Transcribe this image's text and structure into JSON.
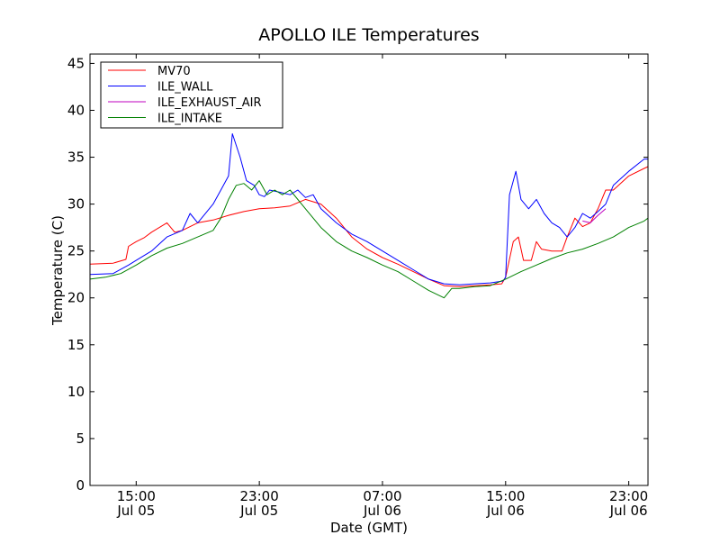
{
  "chart_data": {
    "type": "line",
    "title": "APOLLO ILE Temperatures",
    "xlabel": "Date (GMT)",
    "ylabel": "Temperature (C)",
    "ylim": [
      0,
      46
    ],
    "xlim": [
      "2023-07-05 12:00",
      "2023-07-07 00:15"
    ],
    "grid": false,
    "legend_position": "top-left",
    "yticks": [
      0,
      5,
      10,
      15,
      20,
      25,
      30,
      35,
      40,
      45
    ],
    "xticks": [
      {
        "x": "2023-07-05 15:00",
        "time": "15:00",
        "date": "Jul 05"
      },
      {
        "x": "2023-07-05 23:00",
        "time": "23:00",
        "date": "Jul 05"
      },
      {
        "x": "2023-07-06 07:00",
        "time": "07:00",
        "date": "Jul 06"
      },
      {
        "x": "2023-07-06 15:00",
        "time": "15:00",
        "date": "Jul 06"
      },
      {
        "x": "2023-07-06 23:00",
        "time": "23:00",
        "date": "Jul 06"
      }
    ],
    "series": [
      {
        "name": "MV70",
        "color": "#ff0000",
        "points": [
          [
            "2023-07-05 12:00",
            23.6
          ],
          [
            "2023-07-05 13:30",
            23.7
          ],
          [
            "2023-07-05 14:20",
            24.1
          ],
          [
            "2023-07-05 14:30",
            25.5
          ],
          [
            "2023-07-05 15:00",
            26.0
          ],
          [
            "2023-07-05 15:30",
            26.4
          ],
          [
            "2023-07-05 16:00",
            27.0
          ],
          [
            "2023-07-05 17:00",
            28.0
          ],
          [
            "2023-07-05 17:30",
            27.0
          ],
          [
            "2023-07-05 18:00",
            27.2
          ],
          [
            "2023-07-05 19:00",
            28.0
          ],
          [
            "2023-07-05 20:00",
            28.3
          ],
          [
            "2023-07-05 21:00",
            28.8
          ],
          [
            "2023-07-05 22:00",
            29.2
          ],
          [
            "2023-07-05 23:00",
            29.5
          ],
          [
            "2023-07-06 00:00",
            29.6
          ],
          [
            "2023-07-06 01:00",
            29.8
          ],
          [
            "2023-07-06 02:00",
            30.5
          ],
          [
            "2023-07-06 03:00",
            30.0
          ],
          [
            "2023-07-06 04:00",
            28.5
          ],
          [
            "2023-07-06 05:00",
            26.5
          ],
          [
            "2023-07-06 06:00",
            25.2
          ],
          [
            "2023-07-06 07:00",
            24.3
          ],
          [
            "2023-07-06 08:00",
            23.6
          ],
          [
            "2023-07-06 09:00",
            22.8
          ],
          [
            "2023-07-06 10:00",
            22.0
          ],
          [
            "2023-07-06 11:00",
            21.3
          ],
          [
            "2023-07-06 12:00",
            21.2
          ],
          [
            "2023-07-06 13:00",
            21.3
          ],
          [
            "2023-07-06 14:00",
            21.4
          ],
          [
            "2023-07-06 14:45",
            21.5
          ],
          [
            "2023-07-06 15:00",
            22.2
          ],
          [
            "2023-07-06 15:30",
            26.0
          ],
          [
            "2023-07-06 15:50",
            26.5
          ],
          [
            "2023-07-06 16:10",
            24.0
          ],
          [
            "2023-07-06 16:40",
            24.0
          ],
          [
            "2023-07-06 17:00",
            26.0
          ],
          [
            "2023-07-06 17:20",
            25.2
          ],
          [
            "2023-07-06 18:00",
            25.0
          ],
          [
            "2023-07-06 18:40",
            25.0
          ],
          [
            "2023-07-06 19:00",
            26.5
          ],
          [
            "2023-07-06 19:30",
            28.5
          ],
          [
            "2023-07-06 20:00",
            27.6
          ],
          [
            "2023-07-06 20:30",
            28.0
          ],
          [
            "2023-07-06 21:00",
            29.5
          ],
          [
            "2023-07-06 21:30",
            31.5
          ],
          [
            "2023-07-06 22:00",
            31.5
          ],
          [
            "2023-07-06 23:00",
            33.0
          ],
          [
            "2023-07-07 00:00",
            33.8
          ],
          [
            "2023-07-07 00:15",
            34.0
          ]
        ]
      },
      {
        "name": "ILE_WALL",
        "color": "#0000ff",
        "points": [
          [
            "2023-07-05 12:00",
            22.5
          ],
          [
            "2023-07-05 13:30",
            22.6
          ],
          [
            "2023-07-05 14:30",
            23.5
          ],
          [
            "2023-07-05 15:00",
            24.0
          ],
          [
            "2023-07-05 16:00",
            25.0
          ],
          [
            "2023-07-05 17:00",
            26.5
          ],
          [
            "2023-07-05 18:00",
            27.2
          ],
          [
            "2023-07-05 18:30",
            29.0
          ],
          [
            "2023-07-05 19:00",
            28.0
          ],
          [
            "2023-07-05 20:00",
            30.0
          ],
          [
            "2023-07-05 20:30",
            31.5
          ],
          [
            "2023-07-05 21:00",
            33.0
          ],
          [
            "2023-07-05 21:15",
            37.5
          ],
          [
            "2023-07-05 21:45",
            35.0
          ],
          [
            "2023-07-05 22:10",
            32.5
          ],
          [
            "2023-07-05 22:40",
            32.0
          ],
          [
            "2023-07-05 23:00",
            31.0
          ],
          [
            "2023-07-05 23:20",
            30.8
          ],
          [
            "2023-07-05 23:40",
            31.5
          ],
          [
            "2023-07-06 00:15",
            31.3
          ],
          [
            "2023-07-06 01:00",
            31.0
          ],
          [
            "2023-07-06 01:30",
            31.5
          ],
          [
            "2023-07-06 02:00",
            30.7
          ],
          [
            "2023-07-06 02:30",
            31.0
          ],
          [
            "2023-07-06 03:00",
            29.5
          ],
          [
            "2023-07-06 04:00",
            28.0
          ],
          [
            "2023-07-06 05:00",
            26.8
          ],
          [
            "2023-07-06 06:00",
            26.0
          ],
          [
            "2023-07-06 07:00",
            25.0
          ],
          [
            "2023-07-06 08:00",
            24.0
          ],
          [
            "2023-07-06 09:00",
            23.0
          ],
          [
            "2023-07-06 10:00",
            22.0
          ],
          [
            "2023-07-06 11:00",
            21.5
          ],
          [
            "2023-07-06 12:00",
            21.4
          ],
          [
            "2023-07-06 13:00",
            21.5
          ],
          [
            "2023-07-06 14:00",
            21.6
          ],
          [
            "2023-07-06 14:50",
            21.8
          ],
          [
            "2023-07-06 15:00",
            22.2
          ],
          [
            "2023-07-06 15:15",
            31.0
          ],
          [
            "2023-07-06 15:40",
            33.5
          ],
          [
            "2023-07-06 16:00",
            30.5
          ],
          [
            "2023-07-06 16:30",
            29.5
          ],
          [
            "2023-07-06 17:00",
            30.5
          ],
          [
            "2023-07-06 17:30",
            29.0
          ],
          [
            "2023-07-06 18:00",
            28.0
          ],
          [
            "2023-07-06 18:30",
            27.5
          ],
          [
            "2023-07-06 19:00",
            26.5
          ],
          [
            "2023-07-06 19:30",
            27.5
          ],
          [
            "2023-07-06 20:00",
            29.0
          ],
          [
            "2023-07-06 20:30",
            28.5
          ],
          [
            "2023-07-06 21:00",
            29.2
          ],
          [
            "2023-07-06 21:30",
            30.0
          ],
          [
            "2023-07-06 22:00",
            32.0
          ],
          [
            "2023-07-06 23:00",
            33.5
          ],
          [
            "2023-07-07 00:00",
            34.8
          ],
          [
            "2023-07-07 00:15",
            34.8
          ]
        ]
      },
      {
        "name": "ILE_EXHAUST_AIR",
        "color": "#bf00bf",
        "points": [
          [
            "2023-07-06 20:00",
            28.2
          ],
          [
            "2023-07-06 20:30",
            28.0
          ],
          [
            "2023-07-06 21:00",
            28.8
          ],
          [
            "2023-07-06 21:30",
            29.5
          ]
        ]
      },
      {
        "name": "ILE_INTAKE",
        "color": "#008000",
        "points": [
          [
            "2023-07-05 12:00",
            22.0
          ],
          [
            "2023-07-05 13:00",
            22.2
          ],
          [
            "2023-07-05 14:00",
            22.6
          ],
          [
            "2023-07-05 15:00",
            23.5
          ],
          [
            "2023-07-05 16:00",
            24.5
          ],
          [
            "2023-07-05 17:00",
            25.3
          ],
          [
            "2023-07-05 18:00",
            25.8
          ],
          [
            "2023-07-05 19:00",
            26.5
          ],
          [
            "2023-07-05 20:00",
            27.2
          ],
          [
            "2023-07-05 20:30",
            28.5
          ],
          [
            "2023-07-05 21:00",
            30.5
          ],
          [
            "2023-07-05 21:30",
            32.0
          ],
          [
            "2023-07-05 22:00",
            32.2
          ],
          [
            "2023-07-05 22:30",
            31.5
          ],
          [
            "2023-07-05 23:00",
            32.5
          ],
          [
            "2023-07-05 23:30",
            31.0
          ],
          [
            "2023-07-06 00:00",
            31.5
          ],
          [
            "2023-07-06 00:30",
            31.0
          ],
          [
            "2023-07-06 01:00",
            31.5
          ],
          [
            "2023-07-06 02:00",
            29.5
          ],
          [
            "2023-07-06 03:00",
            27.5
          ],
          [
            "2023-07-06 04:00",
            26.0
          ],
          [
            "2023-07-06 05:00",
            25.0
          ],
          [
            "2023-07-06 06:00",
            24.3
          ],
          [
            "2023-07-06 07:00",
            23.5
          ],
          [
            "2023-07-06 08:00",
            22.8
          ],
          [
            "2023-07-06 09:00",
            21.8
          ],
          [
            "2023-07-06 10:00",
            20.8
          ],
          [
            "2023-07-06 11:00",
            20.0
          ],
          [
            "2023-07-06 11:30",
            21.0
          ],
          [
            "2023-07-06 12:00",
            21.0
          ],
          [
            "2023-07-06 13:00",
            21.2
          ],
          [
            "2023-07-06 14:00",
            21.3
          ],
          [
            "2023-07-06 15:00",
            22.0
          ],
          [
            "2023-07-06 16:00",
            22.8
          ],
          [
            "2023-07-06 17:00",
            23.5
          ],
          [
            "2023-07-06 18:00",
            24.2
          ],
          [
            "2023-07-06 19:00",
            24.8
          ],
          [
            "2023-07-06 20:00",
            25.2
          ],
          [
            "2023-07-06 21:00",
            25.8
          ],
          [
            "2023-07-06 22:00",
            26.5
          ],
          [
            "2023-07-06 23:00",
            27.5
          ],
          [
            "2023-07-07 00:00",
            28.2
          ],
          [
            "2023-07-07 00:15",
            28.5
          ]
        ]
      }
    ]
  }
}
